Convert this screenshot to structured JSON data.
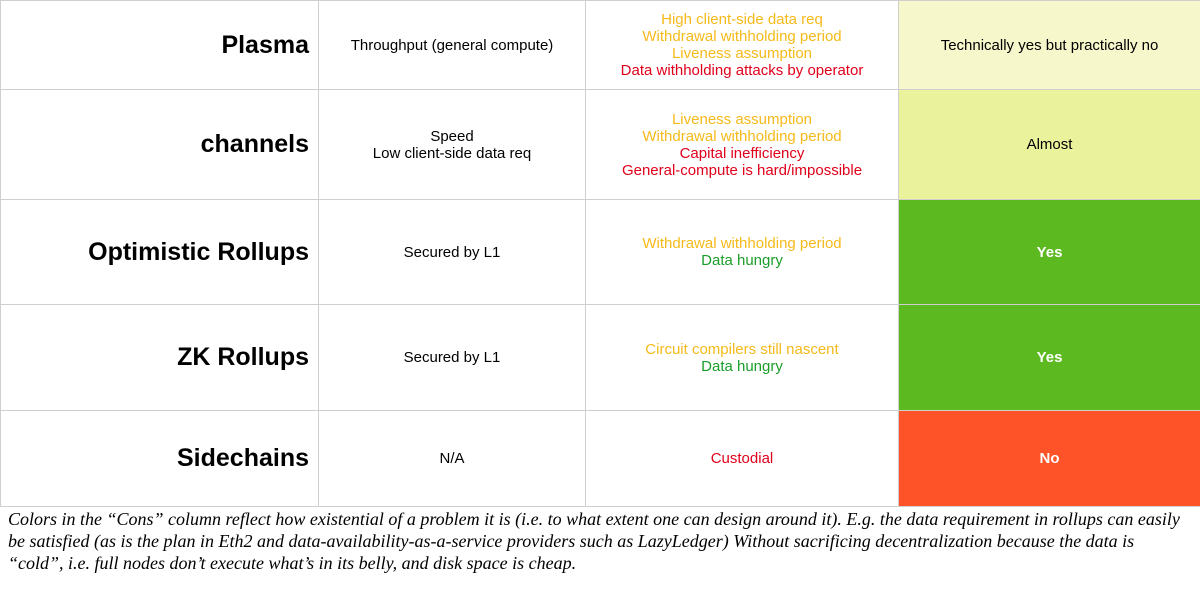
{
  "rows": [
    {
      "name": "Plasma",
      "pros": [
        "Throughput (general compute)"
      ],
      "cons": [
        {
          "text": "High client-side data req",
          "severity": "moderate"
        },
        {
          "text": "Withdrawal withholding period",
          "severity": "moderate"
        },
        {
          "text": "Liveness assumption",
          "severity": "moderate"
        },
        {
          "text": "Data withholding attacks by operator",
          "severity": "severe"
        }
      ],
      "verdict": "Technically yes but practically no",
      "verdict_color": "#f7f7cc",
      "verdict_text_style": "light"
    },
    {
      "name": "channels",
      "pros": [
        "Speed",
        "Low client-side data req"
      ],
      "cons": [
        {
          "text": "Liveness assumption",
          "severity": "moderate"
        },
        {
          "text": "Withdrawal withholding period",
          "severity": "moderate"
        },
        {
          "text": "Capital inefficiency",
          "severity": "severe"
        },
        {
          "text": "General-compute is hard/impossible",
          "severity": "severe"
        }
      ],
      "verdict": "Almost",
      "verdict_color": "#ebf29c",
      "verdict_text_style": "light"
    },
    {
      "name": "Optimistic Rollups",
      "pros": [
        "Secured by L1"
      ],
      "cons": [
        {
          "text": "Withdrawal withholding period",
          "severity": "moderate"
        },
        {
          "text": "Data hungry",
          "severity": "minor"
        }
      ],
      "verdict": "Yes",
      "verdict_color": "#5db920",
      "verdict_text_style": "dark"
    },
    {
      "name": "ZK Rollups",
      "pros": [
        "Secured by L1"
      ],
      "cons": [
        {
          "text": "Circuit compilers still nascent",
          "severity": "moderate"
        },
        {
          "text": "Data hungry",
          "severity": "minor"
        }
      ],
      "verdict": "Yes",
      "verdict_color": "#5db920",
      "verdict_text_style": "dark"
    },
    {
      "name": "Sidechains",
      "pros": [
        "N/A"
      ],
      "cons": [
        {
          "text": "Custodial",
          "severity": "severe"
        }
      ],
      "verdict": "No",
      "verdict_color": "#fe5329",
      "verdict_text_style": "dark"
    }
  ],
  "severity_colors": {
    "severe": "#e0001a",
    "moderate": "#f5ba1a",
    "minor": "#1a9e2a"
  },
  "caption": "Colors in the “Cons” column reflect how existential of a problem it is (i.e. to what extent one can design around it). E.g. the data requirement in rollups can easily be satisfied (as is the plan in Eth2 and data-availability-as-a-service providers such as LazyLedger) Without sacrificing decentralization because the data is “cold”, i.e. full nodes don’t execute what’s in its belly, and disk space is cheap."
}
